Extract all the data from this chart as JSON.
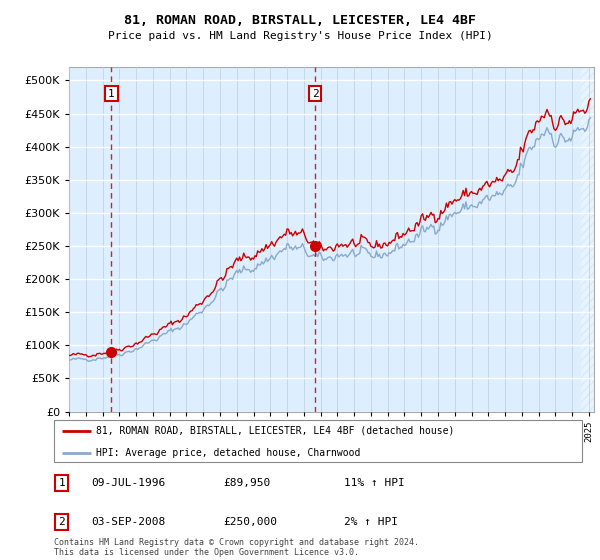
{
  "title": "81, ROMAN ROAD, BIRSTALL, LEICESTER, LE4 4BF",
  "subtitle": "Price paid vs. HM Land Registry's House Price Index (HPI)",
  "legend_line1": "81, ROMAN ROAD, BIRSTALL, LEICESTER, LE4 4BF (detached house)",
  "legend_line2": "HPI: Average price, detached house, Charnwood",
  "annotation1_date": "09-JUL-1996",
  "annotation1_price": "£89,950",
  "annotation1_hpi": "11% ↑ HPI",
  "annotation2_date": "03-SEP-2008",
  "annotation2_price": "£250,000",
  "annotation2_hpi": "2% ↑ HPI",
  "footer": "Contains HM Land Registry data © Crown copyright and database right 2024.\nThis data is licensed under the Open Government Licence v3.0.",
  "bg_color": "#ddeeff",
  "line_red": "#cc0000",
  "line_blue": "#88aacc",
  "hatch_color": "#c0d4e8",
  "sale1_year": 1996.53,
  "sale1_price": 89950,
  "sale2_year": 2008.67,
  "sale2_price": 250000,
  "yticks": [
    0,
    50000,
    100000,
    150000,
    200000,
    250000,
    300000,
    350000,
    400000,
    450000,
    500000
  ],
  "ylim_max": 500000,
  "xmin": 1994,
  "xmax": 2025
}
